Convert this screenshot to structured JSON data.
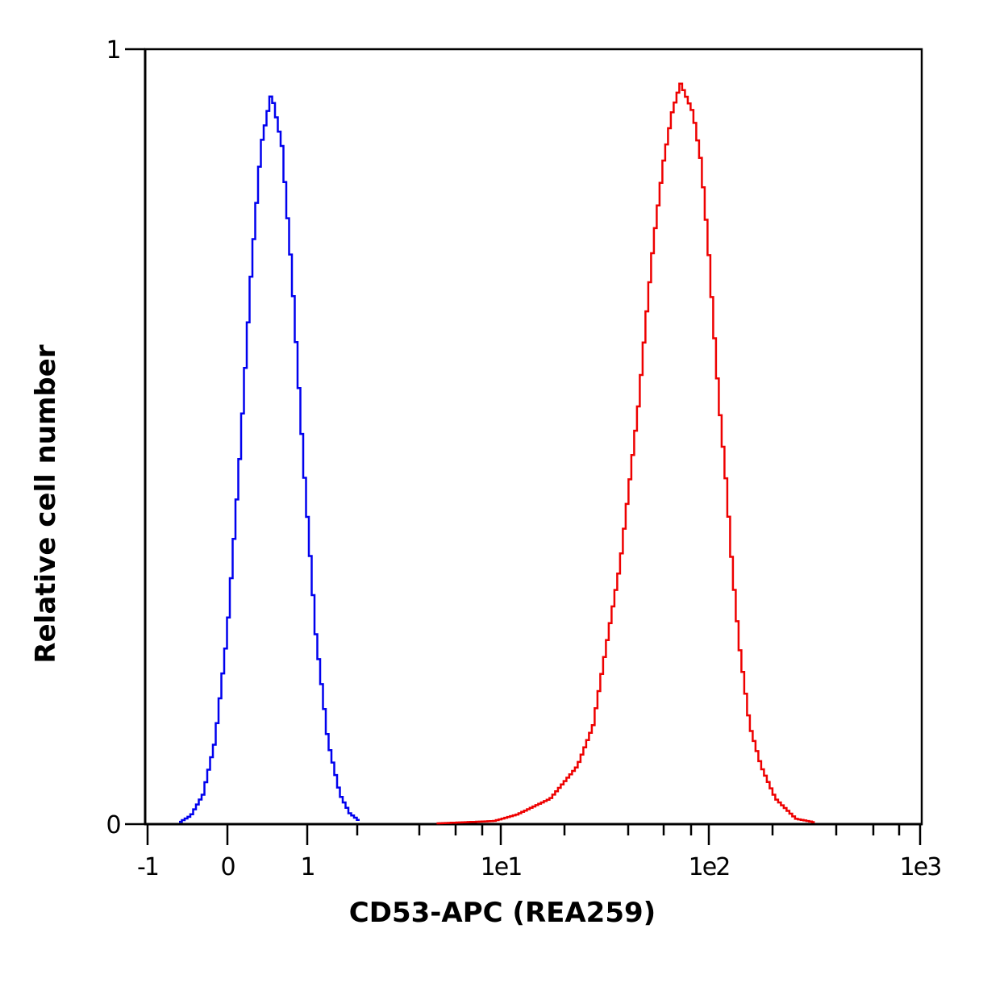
{
  "chart_data": {
    "type": "line",
    "title": "",
    "xlabel": "CD53-APC (REA259)",
    "ylabel": "Relative cell number",
    "x_scale": "biexponential",
    "xlim": [
      -1,
      1000
    ],
    "ylim": [
      0,
      1
    ],
    "grid": false,
    "x_ticks": [
      {
        "value": -1,
        "label": "-1"
      },
      {
        "value": 0,
        "label": "0"
      },
      {
        "value": 1,
        "label": "1"
      },
      {
        "value": 10,
        "label": "1e1"
      },
      {
        "value": 100,
        "label": "1e2"
      },
      {
        "value": 1000,
        "label": "1e3"
      }
    ],
    "x_minor_ticks": [
      2,
      4,
      6,
      8,
      20,
      40,
      60,
      80,
      200,
      400,
      600,
      800
    ],
    "y_ticks": [
      {
        "value": 0,
        "label": "0"
      },
      {
        "value": 1,
        "label": "1"
      }
    ],
    "series": [
      {
        "color": "#0000ee",
        "x": [
          -0.606,
          -0.475,
          -0.323,
          -0.172,
          -0.02,
          0.131,
          0.283,
          0.404,
          0.535,
          0.667,
          0.788,
          0.939,
          1.106,
          1.308,
          1.547,
          1.769,
          2.0
        ],
        "y": [
          0.003,
          0.011,
          0.038,
          0.107,
          0.245,
          0.462,
          0.715,
          0.875,
          0.944,
          0.875,
          0.715,
          0.462,
          0.245,
          0.107,
          0.038,
          0.014,
          0.005
        ]
      },
      {
        "color": "#ee0000",
        "x": [
          4.85,
          9.07,
          11.8,
          16.9,
          22.7,
          26.9,
          30.2,
          33.0,
          36.1,
          39.9,
          44.4,
          48.1,
          52.6,
          59.0,
          64.6,
          70.6,
          80.7,
          89.1,
          97.3,
          103.6,
          110.2,
          119.2,
          126.8,
          137.2,
          153.8,
          173.9,
          203.6,
          254,
          316
        ],
        "y": [
          0.001,
          0.004,
          0.0125,
          0.033,
          0.075,
          0.127,
          0.21,
          0.273,
          0.335,
          0.439,
          0.543,
          0.647,
          0.751,
          0.855,
          0.918,
          0.956,
          0.918,
          0.855,
          0.751,
          0.647,
          0.543,
          0.439,
          0.335,
          0.231,
          0.127,
          0.075,
          0.033,
          0.007,
          0.002
        ]
      }
    ]
  }
}
